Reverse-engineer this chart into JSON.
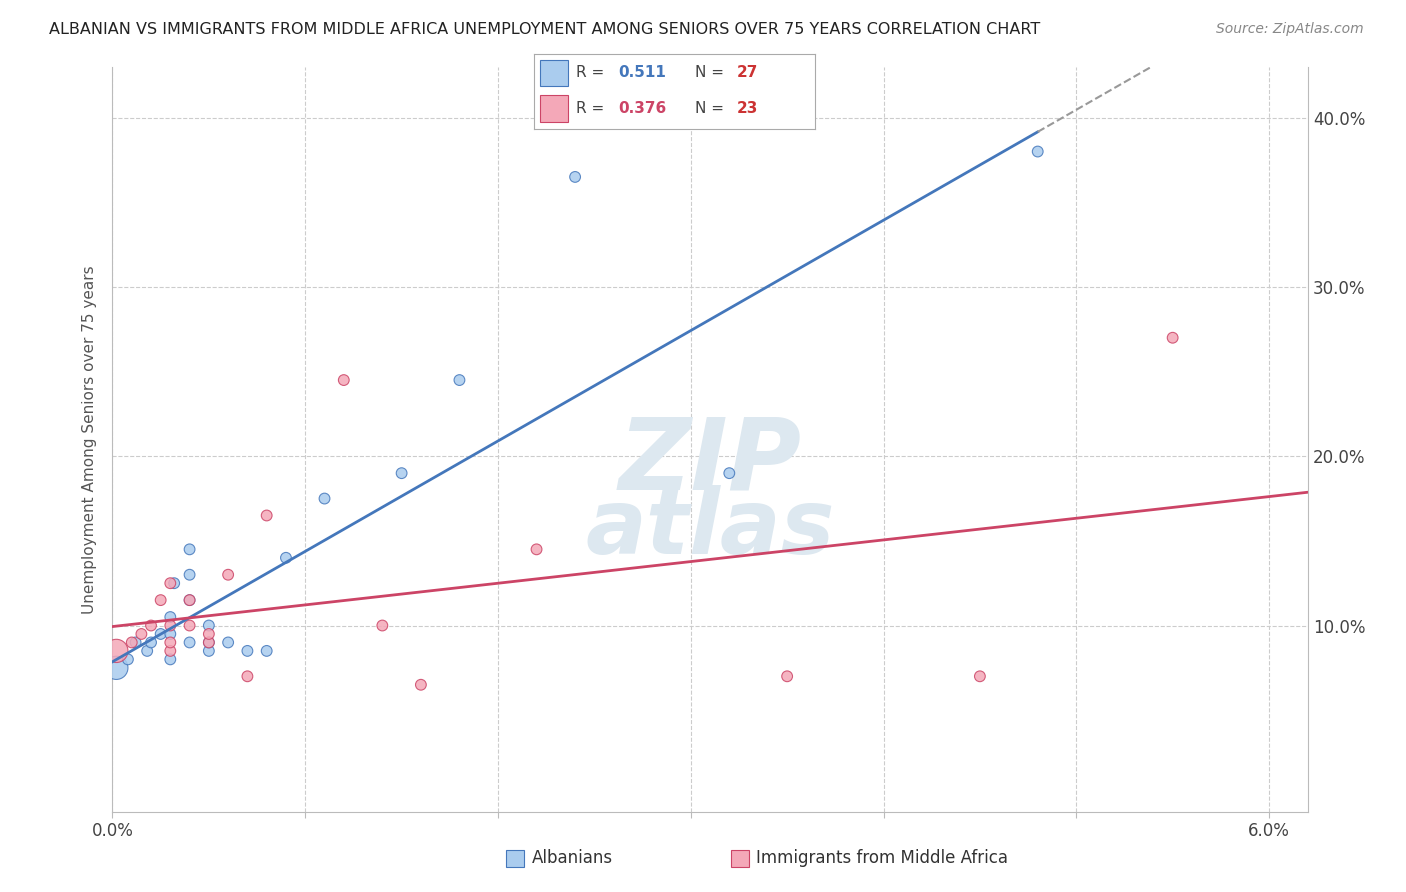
{
  "title": "ALBANIAN VS IMMIGRANTS FROM MIDDLE AFRICA UNEMPLOYMENT AMONG SENIORS OVER 75 YEARS CORRELATION CHART",
  "source": "Source: ZipAtlas.com",
  "ylabel": "Unemployment Among Seniors over 75 years",
  "xlabel_albanians": "Albanians",
  "xlabel_immigrants": "Immigrants from Middle Africa",
  "xlim": [
    0.0,
    0.062
  ],
  "ylim": [
    -0.01,
    0.43
  ],
  "x_ticks": [
    0.0,
    0.01,
    0.02,
    0.03,
    0.04,
    0.05,
    0.06
  ],
  "x_tick_labels": [
    "0.0%",
    "",
    "",
    "",
    "",
    "",
    "6.0%"
  ],
  "y_ticks": [
    0.1,
    0.2,
    0.3,
    0.4
  ],
  "y_tick_labels_right": [
    "10.0%",
    "20.0%",
    "30.0%",
    "40.0%"
  ],
  "legend_val1": "0.511",
  "legend_nval1": "27",
  "legend_val2": "0.376",
  "legend_nval2": "23",
  "color_albanian": "#aaccee",
  "color_immigrant": "#f4a8b8",
  "line_color_albanian": "#4477bb",
  "line_color_immigrant": "#cc4466",
  "albanian_x": [
    0.0002,
    0.0008,
    0.0012,
    0.0018,
    0.002,
    0.0025,
    0.003,
    0.003,
    0.003,
    0.0032,
    0.004,
    0.004,
    0.004,
    0.004,
    0.005,
    0.005,
    0.005,
    0.006,
    0.007,
    0.008,
    0.009,
    0.011,
    0.015,
    0.018,
    0.024,
    0.032,
    0.048
  ],
  "albanian_y": [
    0.075,
    0.08,
    0.09,
    0.085,
    0.09,
    0.095,
    0.08,
    0.095,
    0.105,
    0.125,
    0.09,
    0.115,
    0.13,
    0.145,
    0.085,
    0.09,
    0.1,
    0.09,
    0.085,
    0.085,
    0.14,
    0.175,
    0.19,
    0.245,
    0.365,
    0.19,
    0.38
  ],
  "immigrant_x": [
    0.0002,
    0.001,
    0.0015,
    0.002,
    0.0025,
    0.003,
    0.003,
    0.003,
    0.003,
    0.004,
    0.004,
    0.005,
    0.005,
    0.006,
    0.007,
    0.008,
    0.012,
    0.014,
    0.016,
    0.022,
    0.035,
    0.045,
    0.055
  ],
  "immigrant_y": [
    0.085,
    0.09,
    0.095,
    0.1,
    0.115,
    0.085,
    0.09,
    0.1,
    0.125,
    0.1,
    0.115,
    0.09,
    0.095,
    0.13,
    0.07,
    0.165,
    0.245,
    0.1,
    0.065,
    0.145,
    0.07,
    0.07,
    0.27
  ],
  "albanian_sizes": [
    280,
    60,
    60,
    60,
    60,
    60,
    60,
    60,
    60,
    60,
    60,
    60,
    60,
    60,
    60,
    60,
    60,
    60,
    60,
    60,
    60,
    60,
    60,
    60,
    60,
    60,
    60
  ],
  "immigrant_sizes": [
    280,
    60,
    60,
    60,
    60,
    60,
    60,
    60,
    60,
    60,
    60,
    60,
    60,
    60,
    60,
    60,
    60,
    60,
    60,
    60,
    60,
    60,
    60
  ]
}
